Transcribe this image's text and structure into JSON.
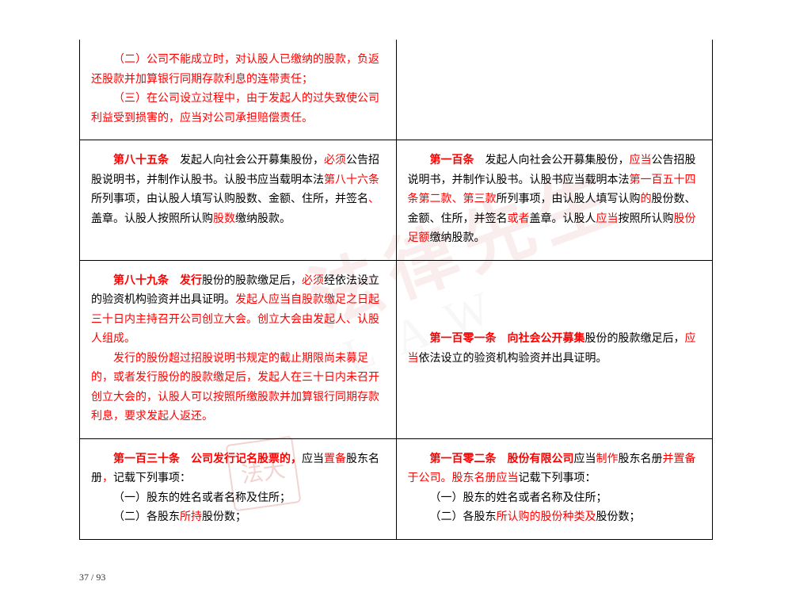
{
  "watermark": "法律先生",
  "watermark2": "LAW",
  "seal": "法大",
  "rows": [
    {
      "left": [
        {
          "class": "indent red",
          "runs": [
            {
              "t": "（二）公司不能成立时，对认股人已缴纳的股款，负返还股款并加算银行同期存款利息的连带责任；"
            }
          ]
        },
        {
          "class": "indent red",
          "runs": [
            {
              "t": "（三）在公司设立过程中，由于发起人的过失致使公司利益受到损害的，应当对公司承担赔偿责任。"
            }
          ]
        }
      ],
      "right": []
    },
    {
      "left": [
        {
          "class": "indent",
          "runs": [
            {
              "t": "第八十五条",
              "c": "red bold-art"
            },
            {
              "t": "　发起人向社会公开募集股份，"
            },
            {
              "t": "必须",
              "c": "red"
            },
            {
              "t": "公告招股说明书，并制作认股书。认股书应当载明本法"
            },
            {
              "t": "第八十六条",
              "c": "red"
            },
            {
              "t": "所列事项，由认股人填写认购股数、金额、住所，并签名"
            },
            {
              "t": "、",
              "c": "red"
            },
            {
              "t": "盖章。认股人按照所认购"
            },
            {
              "t": "股数",
              "c": "red"
            },
            {
              "t": "缴纳股款。"
            }
          ]
        }
      ],
      "right": [
        {
          "class": "indent",
          "runs": [
            {
              "t": "第一百条",
              "c": "red bold-art"
            },
            {
              "t": "　发起人向社会公开募集股份，"
            },
            {
              "t": "应当",
              "c": "red"
            },
            {
              "t": "公告招股说明书，并制作认股书。认股书应当载明本法"
            },
            {
              "t": "第一百五十四条第二款、第三款",
              "c": "red"
            },
            {
              "t": "所列事项，由认股人填写认购"
            },
            {
              "t": "的",
              "c": "red"
            },
            {
              "t": "股份数、金额、住所，并签名"
            },
            {
              "t": "或者",
              "c": "red"
            },
            {
              "t": "盖章。认股人"
            },
            {
              "t": "应当",
              "c": "red"
            },
            {
              "t": "按照所认购"
            },
            {
              "t": "股份足额",
              "c": "red"
            },
            {
              "t": "缴纳股款。"
            }
          ]
        }
      ]
    },
    {
      "left": [
        {
          "class": "indent",
          "runs": [
            {
              "t": "第八十九条　发行",
              "c": "red bold-art"
            },
            {
              "t": "股份的股款缴足后，"
            },
            {
              "t": "必须",
              "c": "red"
            },
            {
              "t": "经依法设立的验资机构验资并出具证明。"
            },
            {
              "t": "发起人应当自股款缴足之日起三十日内主持召开公司创立大会。创立大会由发起人、认股人组成。",
              "c": "red"
            }
          ]
        },
        {
          "class": "indent red",
          "runs": [
            {
              "t": "发行的股份超过招股说明书规定的截止期限尚未募足的，或者发行股份的股款缴足后，发起人在三十日内未召开创立大会的，认股人可以按照所缴股款并加算银行同期存款利息，要求发起人返还。"
            }
          ]
        }
      ],
      "right": [
        {
          "class": "indent",
          "runs": [
            {
              "t": "第一百零一条　向社会公开募集",
              "c": "red bold-art"
            },
            {
              "t": "股份的股款缴足后，"
            },
            {
              "t": "应当",
              "c": "red"
            },
            {
              "t": "依法设立的验资机构验资并出具证明。"
            }
          ]
        }
      ],
      "rightValign": "middle"
    },
    {
      "left": [
        {
          "class": "indent",
          "runs": [
            {
              "t": "第一百三十条　公司发行记名股票的，",
              "c": "red bold-art"
            },
            {
              "t": "应当"
            },
            {
              "t": "置备",
              "c": "red"
            },
            {
              "t": "股东名册"
            },
            {
              "t": "，",
              "c": "red"
            },
            {
              "t": "记载下列事项："
            }
          ]
        },
        {
          "class": "indent",
          "runs": [
            {
              "t": "（一）股东的姓名或者名称及住所；"
            }
          ]
        },
        {
          "class": "indent",
          "runs": [
            {
              "t": "（二）各股东"
            },
            {
              "t": "所持",
              "c": "red"
            },
            {
              "t": "股份数；"
            }
          ]
        }
      ],
      "right": [
        {
          "class": "indent",
          "runs": [
            {
              "t": "第一百零二条　股份有限公司",
              "c": "red bold-art"
            },
            {
              "t": "应当"
            },
            {
              "t": "制作",
              "c": "red"
            },
            {
              "t": "股东名册"
            },
            {
              "t": "并置备于公司。股东名册应当",
              "c": "red"
            },
            {
              "t": "记载下列事项："
            }
          ]
        },
        {
          "class": "indent",
          "runs": [
            {
              "t": "（一）股东的姓名或者名称及住所；"
            }
          ]
        },
        {
          "class": "indent",
          "runs": [
            {
              "t": "（二）各股东"
            },
            {
              "t": "所认购的股份种类及",
              "c": "red"
            },
            {
              "t": "股份数；"
            }
          ]
        }
      ]
    }
  ],
  "footer": "37 / 93"
}
